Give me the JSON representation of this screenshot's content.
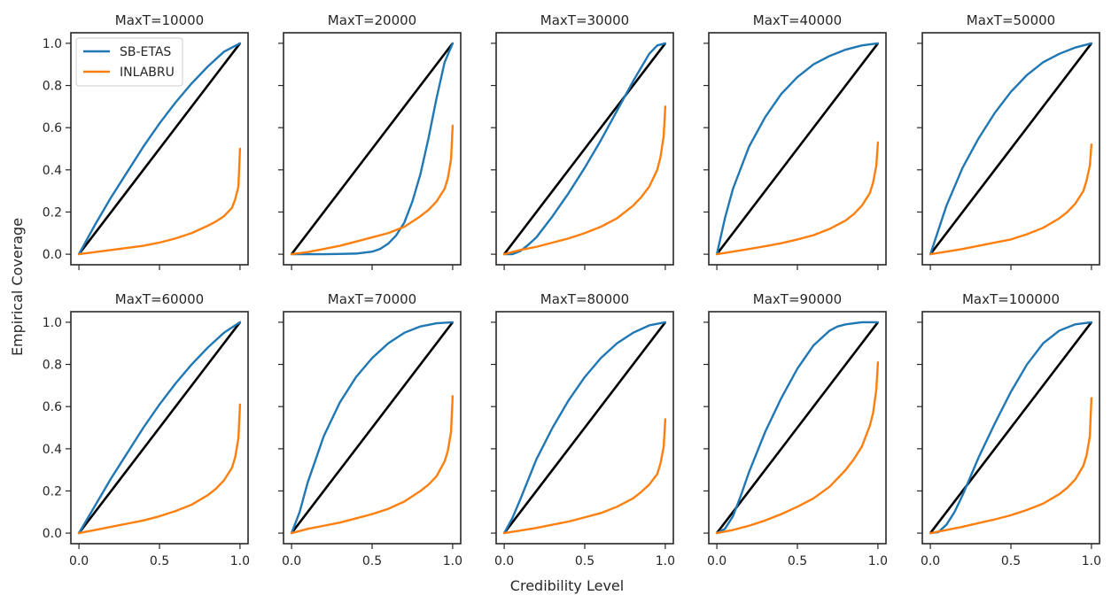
{
  "chart_data": {
    "type": "line",
    "xlabel": "Credibility Level",
    "ylabel": "Empirical Coverage",
    "xlim": [
      -0.05,
      1.05
    ],
    "ylim": [
      -0.05,
      1.05
    ],
    "xticks": [
      0.0,
      0.5,
      1.0
    ],
    "xtick_labels": [
      "0.0",
      "0.5",
      "1.0"
    ],
    "yticks": [
      0.0,
      0.2,
      0.4,
      0.6,
      0.8,
      1.0
    ],
    "ytick_labels": [
      "0.0",
      "0.2",
      "0.4",
      "0.6",
      "0.8",
      "1.0"
    ],
    "grid": false,
    "legend_position": "upper-left of first panel",
    "colors": {
      "SB-ETAS": "#1f77b4",
      "INLABRU": "#ff7f0e",
      "reference": "#000000"
    },
    "legend": [
      "SB-ETAS",
      "INLABRU"
    ],
    "panels": [
      {
        "title": "MaxT=10000",
        "series": [
          {
            "name": "SB-ETAS",
            "x": [
              0,
              0.1,
              0.2,
              0.3,
              0.4,
              0.5,
              0.6,
              0.7,
              0.8,
              0.9,
              1.0
            ],
            "y": [
              0,
              0.14,
              0.27,
              0.39,
              0.51,
              0.62,
              0.72,
              0.81,
              0.89,
              0.96,
              1.0
            ]
          },
          {
            "name": "INLABRU",
            "x": [
              0,
              0.1,
              0.2,
              0.3,
              0.4,
              0.5,
              0.6,
              0.7,
              0.8,
              0.85,
              0.9,
              0.95,
              0.97,
              0.99,
              1.0
            ],
            "y": [
              0,
              0.01,
              0.02,
              0.03,
              0.04,
              0.055,
              0.075,
              0.1,
              0.135,
              0.155,
              0.18,
              0.22,
              0.26,
              0.32,
              0.5
            ]
          }
        ]
      },
      {
        "title": "MaxT=20000",
        "series": [
          {
            "name": "SB-ETAS",
            "x": [
              0,
              0.2,
              0.4,
              0.5,
              0.55,
              0.6,
              0.65,
              0.7,
              0.75,
              0.8,
              0.85,
              0.9,
              0.95,
              1.0
            ],
            "y": [
              0,
              0,
              0.003,
              0.012,
              0.025,
              0.05,
              0.09,
              0.15,
              0.25,
              0.38,
              0.55,
              0.74,
              0.91,
              1.0
            ]
          },
          {
            "name": "INLABRU",
            "x": [
              0,
              0.1,
              0.2,
              0.3,
              0.4,
              0.5,
              0.6,
              0.7,
              0.8,
              0.85,
              0.9,
              0.95,
              0.97,
              0.99,
              1.0
            ],
            "y": [
              0,
              0.01,
              0.025,
              0.04,
              0.06,
              0.08,
              0.1,
              0.13,
              0.18,
              0.21,
              0.25,
              0.31,
              0.36,
              0.45,
              0.61
            ]
          }
        ]
      },
      {
        "title": "MaxT=30000",
        "series": [
          {
            "name": "SB-ETAS",
            "x": [
              0,
              0.05,
              0.1,
              0.15,
              0.2,
              0.3,
              0.4,
              0.5,
              0.6,
              0.7,
              0.8,
              0.9,
              0.95,
              1.0
            ],
            "y": [
              0,
              0,
              0.015,
              0.045,
              0.08,
              0.18,
              0.29,
              0.41,
              0.54,
              0.68,
              0.82,
              0.95,
              0.99,
              1.0
            ]
          },
          {
            "name": "INLABRU",
            "x": [
              0,
              0.1,
              0.2,
              0.3,
              0.4,
              0.5,
              0.6,
              0.7,
              0.8,
              0.85,
              0.9,
              0.95,
              0.97,
              0.99,
              1.0
            ],
            "y": [
              0,
              0.02,
              0.035,
              0.055,
              0.075,
              0.1,
              0.13,
              0.17,
              0.23,
              0.27,
              0.32,
              0.4,
              0.46,
              0.56,
              0.7
            ]
          }
        ]
      },
      {
        "title": "MaxT=40000",
        "series": [
          {
            "name": "SB-ETAS",
            "x": [
              0,
              0.05,
              0.1,
              0.2,
              0.3,
              0.4,
              0.5,
              0.6,
              0.7,
              0.8,
              0.9,
              1.0
            ],
            "y": [
              0,
              0.17,
              0.31,
              0.51,
              0.65,
              0.76,
              0.84,
              0.9,
              0.94,
              0.97,
              0.99,
              1.0
            ]
          },
          {
            "name": "INLABRU",
            "x": [
              0,
              0.1,
              0.2,
              0.3,
              0.4,
              0.5,
              0.6,
              0.7,
              0.8,
              0.85,
              0.9,
              0.95,
              0.97,
              0.99,
              1.0
            ],
            "y": [
              0,
              0.012,
              0.025,
              0.038,
              0.052,
              0.07,
              0.09,
              0.12,
              0.16,
              0.19,
              0.23,
              0.29,
              0.34,
              0.42,
              0.53
            ]
          }
        ]
      },
      {
        "title": "MaxT=50000",
        "series": [
          {
            "name": "SB-ETAS",
            "x": [
              0,
              0.1,
              0.2,
              0.3,
              0.4,
              0.5,
              0.6,
              0.7,
              0.8,
              0.9,
              1.0
            ],
            "y": [
              0,
              0.23,
              0.41,
              0.55,
              0.67,
              0.77,
              0.85,
              0.91,
              0.95,
              0.98,
              1.0
            ]
          },
          {
            "name": "INLABRU",
            "x": [
              0,
              0.1,
              0.2,
              0.3,
              0.4,
              0.5,
              0.6,
              0.7,
              0.8,
              0.85,
              0.9,
              0.95,
              0.97,
              0.99,
              1.0
            ],
            "y": [
              0,
              0.012,
              0.025,
              0.04,
              0.055,
              0.07,
              0.095,
              0.125,
              0.17,
              0.2,
              0.24,
              0.3,
              0.35,
              0.42,
              0.52
            ]
          }
        ]
      },
      {
        "title": "MaxT=60000",
        "series": [
          {
            "name": "SB-ETAS",
            "x": [
              0,
              0.1,
              0.2,
              0.3,
              0.4,
              0.5,
              0.6,
              0.7,
              0.8,
              0.9,
              1.0
            ],
            "y": [
              0,
              0.13,
              0.26,
              0.38,
              0.5,
              0.61,
              0.71,
              0.8,
              0.88,
              0.95,
              1.0
            ]
          },
          {
            "name": "INLABRU",
            "x": [
              0,
              0.1,
              0.2,
              0.3,
              0.4,
              0.5,
              0.6,
              0.7,
              0.8,
              0.85,
              0.9,
              0.95,
              0.97,
              0.99,
              1.0
            ],
            "y": [
              0,
              0.015,
              0.03,
              0.045,
              0.06,
              0.08,
              0.105,
              0.135,
              0.18,
              0.21,
              0.25,
              0.31,
              0.36,
              0.45,
              0.61
            ]
          }
        ]
      },
      {
        "title": "MaxT=70000",
        "series": [
          {
            "name": "SB-ETAS",
            "x": [
              0,
              0.05,
              0.1,
              0.2,
              0.3,
              0.4,
              0.5,
              0.6,
              0.7,
              0.8,
              0.9,
              1.0
            ],
            "y": [
              0,
              0.1,
              0.24,
              0.46,
              0.62,
              0.74,
              0.83,
              0.9,
              0.95,
              0.98,
              0.995,
              1.0
            ]
          },
          {
            "name": "INLABRU",
            "x": [
              0,
              0.1,
              0.2,
              0.3,
              0.4,
              0.5,
              0.6,
              0.7,
              0.8,
              0.85,
              0.9,
              0.95,
              0.97,
              0.99,
              1.0
            ],
            "y": [
              0,
              0.02,
              0.035,
              0.05,
              0.07,
              0.09,
              0.115,
              0.15,
              0.2,
              0.23,
              0.27,
              0.34,
              0.39,
              0.48,
              0.65
            ]
          }
        ]
      },
      {
        "title": "MaxT=80000",
        "series": [
          {
            "name": "SB-ETAS",
            "x": [
              0,
              0.05,
              0.1,
              0.2,
              0.3,
              0.4,
              0.5,
              0.6,
              0.7,
              0.8,
              0.9,
              1.0
            ],
            "y": [
              0,
              0.07,
              0.16,
              0.35,
              0.5,
              0.63,
              0.74,
              0.83,
              0.9,
              0.95,
              0.985,
              1.0
            ]
          },
          {
            "name": "INLABRU",
            "x": [
              0,
              0.1,
              0.2,
              0.3,
              0.4,
              0.5,
              0.6,
              0.7,
              0.8,
              0.85,
              0.9,
              0.95,
              0.97,
              0.99,
              1.0
            ],
            "y": [
              0,
              0.012,
              0.025,
              0.04,
              0.055,
              0.075,
              0.095,
              0.125,
              0.165,
              0.195,
              0.23,
              0.28,
              0.33,
              0.41,
              0.54
            ]
          }
        ]
      },
      {
        "title": "MaxT=90000",
        "series": [
          {
            "name": "SB-ETAS",
            "x": [
              0,
              0.05,
              0.1,
              0.15,
              0.2,
              0.3,
              0.4,
              0.5,
              0.6,
              0.7,
              0.75,
              0.8,
              0.9,
              1.0
            ],
            "y": [
              0,
              0.02,
              0.08,
              0.18,
              0.29,
              0.48,
              0.64,
              0.78,
              0.89,
              0.96,
              0.98,
              0.99,
              1.0,
              1.0
            ]
          },
          {
            "name": "INLABRU",
            "x": [
              0,
              0.1,
              0.2,
              0.3,
              0.4,
              0.5,
              0.6,
              0.7,
              0.8,
              0.85,
              0.9,
              0.95,
              0.97,
              0.99,
              1.0
            ],
            "y": [
              0,
              0.015,
              0.035,
              0.06,
              0.09,
              0.125,
              0.165,
              0.22,
              0.3,
              0.35,
              0.41,
              0.51,
              0.57,
              0.68,
              0.81
            ]
          }
        ]
      },
      {
        "title": "MaxT=100000",
        "series": [
          {
            "name": "SB-ETAS",
            "x": [
              0,
              0.05,
              0.1,
              0.15,
              0.2,
              0.3,
              0.4,
              0.5,
              0.6,
              0.7,
              0.8,
              0.9,
              1.0
            ],
            "y": [
              0,
              0.005,
              0.04,
              0.1,
              0.18,
              0.36,
              0.52,
              0.67,
              0.8,
              0.9,
              0.96,
              0.99,
              1.0
            ]
          },
          {
            "name": "INLABRU",
            "x": [
              0,
              0.1,
              0.2,
              0.3,
              0.4,
              0.5,
              0.6,
              0.7,
              0.8,
              0.85,
              0.9,
              0.95,
              0.97,
              0.99,
              1.0
            ],
            "y": [
              0,
              0.015,
              0.03,
              0.048,
              0.065,
              0.085,
              0.11,
              0.14,
              0.185,
              0.215,
              0.255,
              0.32,
              0.37,
              0.46,
              0.64
            ]
          }
        ]
      }
    ]
  }
}
